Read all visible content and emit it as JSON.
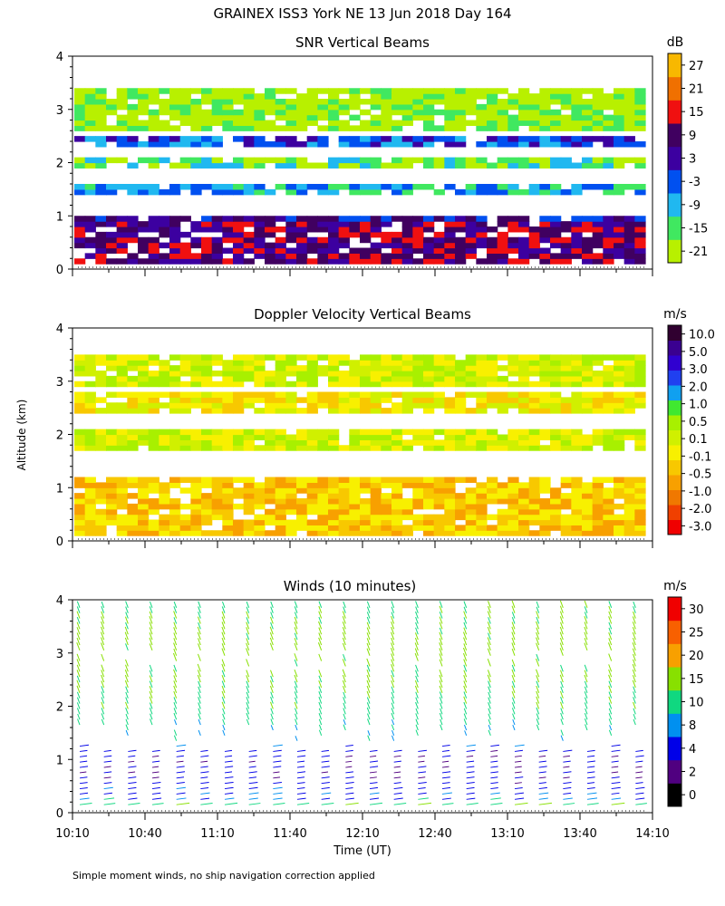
{
  "title": "GRAINEX ISS3 York NE  13 Jun 2018 Day 164",
  "footnote": "Simple moment winds, no ship navigation correction applied",
  "shared_axes": {
    "ylabel": "Altitude (km)",
    "xlabel": "Time (UT)",
    "x_ticklabels": [
      "10:10",
      "10:40",
      "11:10",
      "11:40",
      "12:10",
      "12:40",
      "13:10",
      "13:40",
      "14:10"
    ],
    "y_ticklabels": [
      "0",
      "1",
      "2",
      "3",
      "4"
    ]
  },
  "colors": {
    "snr": [
      "#b8f000",
      "#40e860",
      "#20b8f0",
      "#0050f0",
      "#3c00a0",
      "#400060",
      "#f01010",
      "#f07000",
      "#f8b800"
    ],
    "doppler": [
      "#f00000",
      "#f04000",
      "#f07800",
      "#f8a000",
      "#f8c800",
      "#f8f000",
      "#d0f000",
      "#a8f000",
      "#40e830",
      "#10a0f0",
      "#2040f0",
      "#3000d0",
      "#3a0090",
      "#300030"
    ],
    "winds": [
      "#000000",
      "#500080",
      "#0000e8",
      "#0090f0",
      "#10d880",
      "#88e000",
      "#f8a000",
      "#f86000",
      "#f00000"
    ]
  },
  "chart_data": [
    {
      "type": "heatmap",
      "title": "SNR Vertical Beams",
      "colorbar_unit": "dB",
      "colorbar_ticks": [
        "-21",
        "-15",
        "-9",
        "-3",
        "3",
        "9",
        "15",
        "21",
        "27"
      ],
      "xlim": [
        "10:10",
        "14:10"
      ],
      "ylim": [
        0,
        4
      ],
      "layers": [
        {
          "alt_range": [
            0.1,
            0.9
          ],
          "snr_db": 9
        },
        {
          "alt_range": [
            0.9,
            1.0
          ],
          "snr_db": 3
        },
        {
          "alt_range": [
            1.4,
            1.6
          ],
          "snr_db": -9
        },
        {
          "alt_range": [
            1.9,
            2.1
          ],
          "snr_db": -15
        },
        {
          "alt_range": [
            2.3,
            2.5
          ],
          "snr_db": -3
        },
        {
          "alt_range": [
            2.6,
            3.4
          ],
          "snr_db": -21
        }
      ]
    },
    {
      "type": "heatmap",
      "title": "Doppler Velocity Vertical Beams",
      "colorbar_unit": "m/s",
      "colorbar_ticks": [
        "-3.0",
        "-2.0",
        "-1.0",
        "-0.5",
        "-0.1",
        "0.1",
        "0.5",
        "1.0",
        "2.0",
        "3.0",
        "5.0",
        "10.0"
      ],
      "xlim": [
        "10:10",
        "14:10"
      ],
      "ylim": [
        0,
        4
      ],
      "layers": [
        {
          "alt_range": [
            0.1,
            1.2
          ],
          "velocity_ms": -0.3
        },
        {
          "alt_range": [
            1.7,
            2.1
          ],
          "velocity_ms": 0.1
        },
        {
          "alt_range": [
            2.4,
            2.8
          ],
          "velocity_ms": 0.0
        },
        {
          "alt_range": [
            2.9,
            3.5
          ],
          "velocity_ms": 0.2
        }
      ]
    },
    {
      "type": "scatter",
      "title": "Winds (10 minutes)",
      "colorbar_unit": "m/s",
      "colorbar_ticks": [
        "0",
        "2",
        "4",
        "8",
        "10",
        "15",
        "20",
        "25",
        "30"
      ],
      "xlim": [
        "10:10",
        "14:10"
      ],
      "ylim": [
        0,
        4
      ],
      "profile_times": [
        "10:10",
        "10:20",
        "10:30",
        "10:40",
        "10:50",
        "11:00",
        "11:10",
        "11:20",
        "11:30",
        "11:40",
        "11:50",
        "12:00",
        "12:10",
        "12:20",
        "12:30",
        "12:40",
        "12:50",
        "13:00",
        "13:10",
        "13:20",
        "13:30",
        "13:40",
        "13:50",
        "14:00"
      ],
      "speed_by_altitude": [
        {
          "alt_km": 0.2,
          "speed_ms": 9
        },
        {
          "alt_km": 0.6,
          "speed_ms": 5
        },
        {
          "alt_km": 1.0,
          "speed_ms": 4
        },
        {
          "alt_km": 1.5,
          "speed_ms": 10
        },
        {
          "alt_km": 2.0,
          "speed_ms": 14
        },
        {
          "alt_km": 2.5,
          "speed_ms": 16
        },
        {
          "alt_km": 3.0,
          "speed_ms": 17
        },
        {
          "alt_km": 3.5,
          "speed_ms": 16
        },
        {
          "alt_km": 3.9,
          "speed_ms": 14
        }
      ]
    }
  ]
}
